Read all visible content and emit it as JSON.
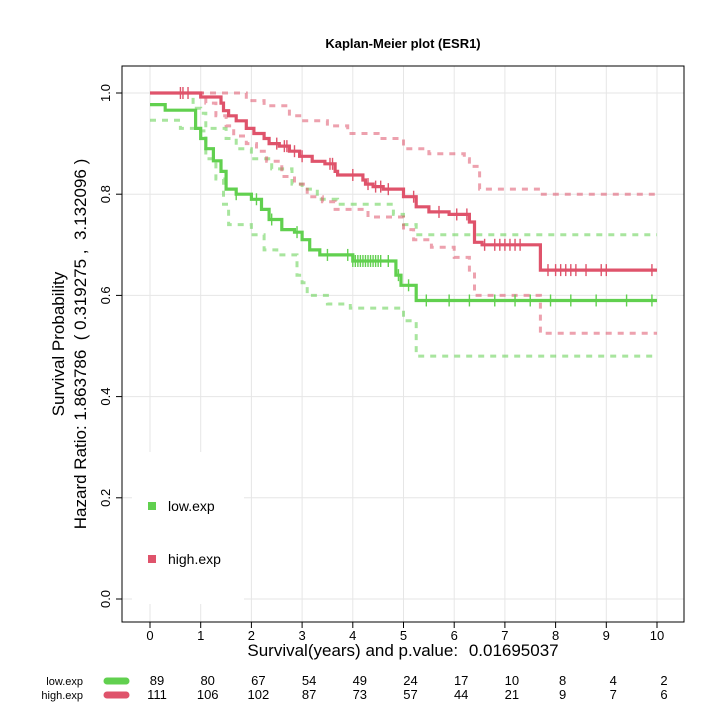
{
  "chart_data": {
    "type": "line",
    "title": "Kaplan-Meier plot (ESR1)",
    "xlabel_prefix": "Survival(years) and p.value:",
    "p_value": "0.01695037",
    "ylabel_line1": "Survival Probability",
    "ylabel_line2": "Hazard Ratio: 1.863786  ( 0.319275 ,  3.132096 )",
    "xlim": [
      0,
      10
    ],
    "ylim": [
      0,
      1
    ],
    "xticks": [
      0,
      1,
      2,
      3,
      4,
      5,
      6,
      7,
      8,
      9,
      10
    ],
    "yticks": [
      0.0,
      0.2,
      0.4,
      0.6,
      0.8,
      1.0
    ],
    "ytick_labels": [
      "0.0",
      "0.2",
      "0.4",
      "0.6",
      "0.8",
      "1.0"
    ],
    "grid": true,
    "legend_placement": "bottom-left",
    "series": [
      {
        "name": "low.exp",
        "color": "#61D04F",
        "steps": [
          [
            0,
            0.977
          ],
          [
            0.15,
            0.977
          ],
          [
            0.3,
            0.966
          ],
          [
            0.75,
            0.966
          ],
          [
            0.9,
            0.93
          ],
          [
            1.0,
            0.91
          ],
          [
            1.1,
            0.89
          ],
          [
            1.25,
            0.866
          ],
          [
            1.4,
            0.845
          ],
          [
            1.5,
            0.81
          ],
          [
            1.7,
            0.8
          ],
          [
            2.0,
            0.79
          ],
          [
            2.2,
            0.77
          ],
          [
            2.35,
            0.75
          ],
          [
            2.6,
            0.73
          ],
          [
            2.85,
            0.725
          ],
          [
            3.0,
            0.71
          ],
          [
            3.15,
            0.69
          ],
          [
            3.35,
            0.68
          ],
          [
            4.0,
            0.668
          ],
          [
            4.6,
            0.668
          ],
          [
            4.85,
            0.64
          ],
          [
            4.95,
            0.62
          ],
          [
            5.25,
            0.59
          ],
          [
            10.0,
            0.59
          ]
        ],
        "upper_steps": [
          [
            0,
            1.0
          ],
          [
            0.7,
            1.0
          ],
          [
            0.85,
            0.97
          ],
          [
            1.0,
            0.96
          ],
          [
            1.1,
            0.93
          ],
          [
            1.5,
            0.91
          ],
          [
            1.7,
            0.89
          ],
          [
            2.0,
            0.87
          ],
          [
            2.4,
            0.85
          ],
          [
            2.8,
            0.82
          ],
          [
            3.0,
            0.81
          ],
          [
            3.3,
            0.79
          ],
          [
            3.7,
            0.78
          ],
          [
            4.5,
            0.78
          ],
          [
            4.8,
            0.76
          ],
          [
            5.0,
            0.74
          ],
          [
            5.25,
            0.72
          ],
          [
            10.0,
            0.72
          ]
        ],
        "lower_steps": [
          [
            0,
            0.946
          ],
          [
            0.3,
            0.946
          ],
          [
            0.6,
            0.93
          ],
          [
            1.0,
            0.925
          ],
          [
            1.1,
            0.87
          ],
          [
            1.3,
            0.83
          ],
          [
            1.45,
            0.78
          ],
          [
            1.55,
            0.74
          ],
          [
            2.0,
            0.72
          ],
          [
            2.25,
            0.69
          ],
          [
            2.5,
            0.68
          ],
          [
            2.9,
            0.64
          ],
          [
            3.0,
            0.625
          ],
          [
            3.1,
            0.6
          ],
          [
            3.5,
            0.583
          ],
          [
            3.95,
            0.575
          ],
          [
            4.6,
            0.575
          ],
          [
            5.0,
            0.55
          ],
          [
            5.25,
            0.48
          ],
          [
            10.0,
            0.48
          ]
        ],
        "censor_x": [
          1.7,
          2.1,
          2.4,
          2.9,
          3.5,
          3.9,
          4.0,
          4.05,
          4.1,
          4.15,
          4.2,
          4.25,
          4.3,
          4.35,
          4.4,
          4.45,
          4.5,
          4.55,
          4.7,
          4.9,
          5.1,
          5.45,
          5.9,
          6.3,
          6.8,
          7.2,
          7.5,
          7.9,
          8.3,
          8.8,
          9.4,
          9.9
        ]
      },
      {
        "name": "high.exp",
        "color": "#DF536B",
        "steps": [
          [
            0,
            1.0
          ],
          [
            0.9,
            1.0
          ],
          [
            1.0,
            0.992
          ],
          [
            1.4,
            0.98
          ],
          [
            1.45,
            0.965
          ],
          [
            1.55,
            0.955
          ],
          [
            1.7,
            0.945
          ],
          [
            1.9,
            0.93
          ],
          [
            2.05,
            0.92
          ],
          [
            2.25,
            0.91
          ],
          [
            2.35,
            0.9
          ],
          [
            2.55,
            0.895
          ],
          [
            2.75,
            0.885
          ],
          [
            2.95,
            0.875
          ],
          [
            3.2,
            0.865
          ],
          [
            3.45,
            0.86
          ],
          [
            3.65,
            0.845
          ],
          [
            3.7,
            0.838
          ],
          [
            4.2,
            0.828
          ],
          [
            4.25,
            0.82
          ],
          [
            4.4,
            0.815
          ],
          [
            4.6,
            0.81
          ],
          [
            5.0,
            0.795
          ],
          [
            5.25,
            0.775
          ],
          [
            5.5,
            0.765
          ],
          [
            5.9,
            0.76
          ],
          [
            6.3,
            0.745
          ],
          [
            6.4,
            0.705
          ],
          [
            6.55,
            0.7
          ],
          [
            7.6,
            0.7
          ],
          [
            7.7,
            0.65
          ],
          [
            10.0,
            0.65
          ]
        ],
        "upper_steps": [
          [
            0,
            1.0
          ],
          [
            1.45,
            1.0
          ],
          [
            1.9,
            0.985
          ],
          [
            2.25,
            0.975
          ],
          [
            2.75,
            0.955
          ],
          [
            3.0,
            0.945
          ],
          [
            3.5,
            0.935
          ],
          [
            3.9,
            0.92
          ],
          [
            4.5,
            0.91
          ],
          [
            5.0,
            0.89
          ],
          [
            5.5,
            0.88
          ],
          [
            6.2,
            0.87
          ],
          [
            6.3,
            0.855
          ],
          [
            6.5,
            0.81
          ],
          [
            7.6,
            0.81
          ],
          [
            7.7,
            0.8
          ],
          [
            10.0,
            0.8
          ]
        ],
        "lower_steps": [
          [
            0,
            1.0
          ],
          [
            0.9,
            1.0
          ],
          [
            1.1,
            0.98
          ],
          [
            1.3,
            0.955
          ],
          [
            1.5,
            0.935
          ],
          [
            1.65,
            0.915
          ],
          [
            1.9,
            0.9
          ],
          [
            2.1,
            0.885
          ],
          [
            2.3,
            0.865
          ],
          [
            2.6,
            0.835
          ],
          [
            2.85,
            0.82
          ],
          [
            3.1,
            0.795
          ],
          [
            3.4,
            0.785
          ],
          [
            3.65,
            0.77
          ],
          [
            4.3,
            0.755
          ],
          [
            5.0,
            0.73
          ],
          [
            5.2,
            0.71
          ],
          [
            5.55,
            0.695
          ],
          [
            6.0,
            0.675
          ],
          [
            6.3,
            0.65
          ],
          [
            6.4,
            0.6
          ],
          [
            7.6,
            0.6
          ],
          [
            7.7,
            0.525
          ],
          [
            10.0,
            0.525
          ]
        ],
        "censor_x": [
          0.6,
          0.65,
          0.75,
          2.5,
          2.65,
          2.7,
          2.85,
          3.0,
          3.55,
          3.6,
          4.0,
          4.3,
          4.45,
          4.55,
          4.7,
          5.2,
          5.7,
          6.05,
          6.25,
          6.6,
          6.8,
          6.9,
          7.0,
          7.1,
          7.2,
          7.3,
          7.85,
          8.0,
          8.1,
          8.2,
          8.3,
          8.4,
          8.6,
          8.9,
          9.0,
          9.9
        ]
      }
    ],
    "risk_table": {
      "times": [
        0,
        1,
        2,
        3,
        4,
        5,
        6,
        7,
        8,
        9,
        10
      ],
      "rows": [
        {
          "name": "low.exp",
          "color": "#61D04F",
          "values": [
            "89",
            "80",
            "67",
            "54",
            "49",
            "24",
            "17",
            "10",
            "8",
            "4",
            "2"
          ]
        },
        {
          "name": "high.exp",
          "color": "#DF536B",
          "values": [
            "111",
            "106",
            "102",
            "87",
            "73",
            "57",
            "44",
            "21",
            "9",
            "7",
            "6"
          ]
        }
      ]
    }
  }
}
